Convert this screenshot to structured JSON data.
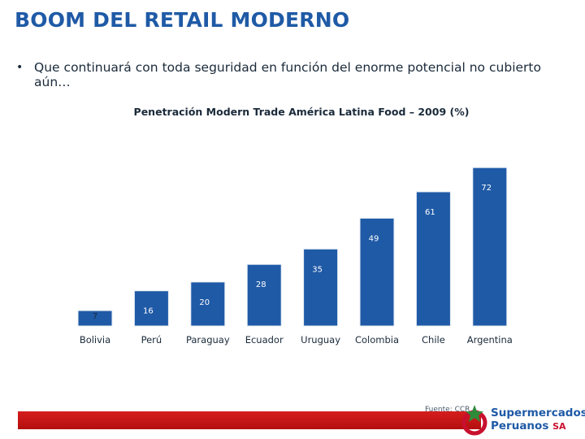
{
  "slide": {
    "title": "BOOM DEL RETAIL MODERNO",
    "bullet_symbol": "•",
    "bullet_text": "Que continuará con toda seguridad en función del enorme potencial no cubierto aún…",
    "source": "Fuente: CCR",
    "logo_line1": "Supermercados",
    "logo_line2": "Peruanos",
    "logo_sa": "SA"
  },
  "colors": {
    "title": "#1f5aa6",
    "bar": "#1f5aa6",
    "bar_border": "#e8eef6",
    "footer": "#c8102e"
  },
  "chart_data": {
    "type": "bar",
    "title": "Penetración Modern Trade América Latina Food – 2009 (%)",
    "categories": [
      "Bolivia",
      "Perú",
      "Paraguay",
      "Ecuador",
      "Uruguay",
      "Colombia",
      "Chile",
      "Argentina"
    ],
    "values": [
      7,
      16,
      20,
      28,
      35,
      49,
      61,
      72
    ],
    "data_labels": [
      "7",
      "16",
      "20",
      "28",
      "35",
      "49",
      "61",
      "72"
    ],
    "xlabel": "",
    "ylabel": "",
    "ylim": [
      0,
      85
    ],
    "grid": false
  }
}
